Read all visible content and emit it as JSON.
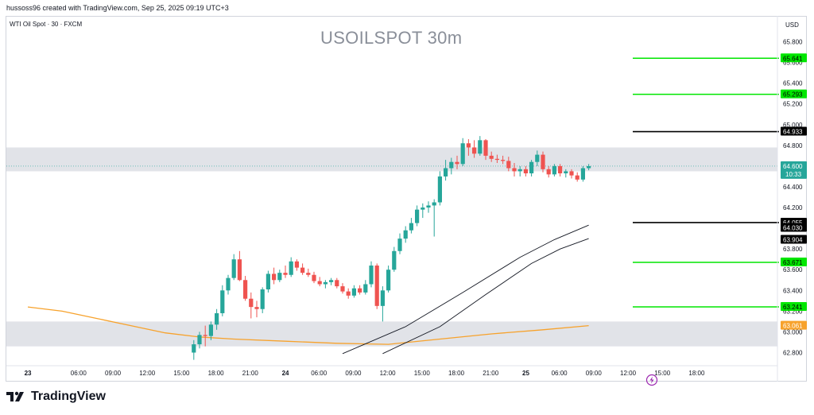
{
  "header": {
    "credit": "hussoss96 created with TradingView.com, Sep 25, 2025 09:19 UTC+3"
  },
  "symbol": "WTI Oil Spot · 30 · FXCM",
  "logo": {
    "text": "TradingView"
  },
  "colors": {
    "up": "#26a69a",
    "down": "#ef5350",
    "support_line": "#00e600",
    "resistance_line": "#000000",
    "ma_orange": "#f7a22c",
    "zone": "#e1e3e8",
    "current_price": "#26a69a"
  },
  "chart_data": {
    "type": "candlestick",
    "title": "USOILSPOT 30m",
    "currency": "USD",
    "ylim": [
      62.75,
      65.95
    ],
    "y_ticks": [
      "65.800",
      "65.600",
      "65.400",
      "65.200",
      "65.000",
      "64.800",
      "64.400",
      "64.200",
      "63.800",
      "63.600",
      "63.400",
      "63.200",
      "63.000",
      "62.800"
    ],
    "x_ticks": [
      {
        "i": 0,
        "label": "23"
      },
      {
        "i": 9,
        "label": "06:00"
      },
      {
        "i": 15,
        "label": "09:00"
      },
      {
        "i": 21,
        "label": "12:00"
      },
      {
        "i": 27,
        "label": "15:00"
      },
      {
        "i": 33,
        "label": "18:00"
      },
      {
        "i": 39,
        "label": "21:00"
      },
      {
        "i": 45,
        "label": "24"
      },
      {
        "i": 51,
        "label": "06:00"
      },
      {
        "i": 57,
        "label": "09:00"
      },
      {
        "i": 63,
        "label": "12:00"
      },
      {
        "i": 69,
        "label": "15:00"
      },
      {
        "i": 75,
        "label": "18:00"
      },
      {
        "i": 81,
        "label": "21:00"
      },
      {
        "i": 87,
        "label": "25"
      },
      {
        "i": 93,
        "label": "06:00"
      },
      {
        "i": 99,
        "label": "09:00"
      },
      {
        "i": 105,
        "label": "12:00"
      },
      {
        "i": 111,
        "label": "15:00"
      },
      {
        "i": 117,
        "label": "18:00"
      }
    ],
    "candles": [
      {
        "i": 29,
        "o": 62.8,
        "h": 62.92,
        "l": 62.73,
        "c": 62.88
      },
      {
        "i": 30,
        "o": 62.88,
        "h": 63.0,
        "l": 62.84,
        "c": 62.97
      },
      {
        "i": 31,
        "o": 62.97,
        "h": 63.06,
        "l": 62.86,
        "c": 62.96
      },
      {
        "i": 32,
        "o": 62.96,
        "h": 63.1,
        "l": 62.92,
        "c": 63.07
      },
      {
        "i": 33,
        "o": 63.07,
        "h": 63.22,
        "l": 63.02,
        "c": 63.18
      },
      {
        "i": 34,
        "o": 63.18,
        "h": 63.45,
        "l": 63.15,
        "c": 63.4
      },
      {
        "i": 35,
        "o": 63.4,
        "h": 63.55,
        "l": 63.36,
        "c": 63.52
      },
      {
        "i": 36,
        "o": 63.52,
        "h": 63.75,
        "l": 63.5,
        "c": 63.7
      },
      {
        "i": 37,
        "o": 63.7,
        "h": 63.78,
        "l": 63.49,
        "c": 63.5
      },
      {
        "i": 38,
        "o": 63.5,
        "h": 63.54,
        "l": 63.3,
        "c": 63.32
      },
      {
        "i": 39,
        "o": 63.32,
        "h": 63.38,
        "l": 63.13,
        "c": 63.24
      },
      {
        "i": 40,
        "o": 63.24,
        "h": 63.3,
        "l": 63.14,
        "c": 63.22
      },
      {
        "i": 41,
        "o": 63.22,
        "h": 63.43,
        "l": 63.18,
        "c": 63.41
      },
      {
        "i": 42,
        "o": 63.41,
        "h": 63.59,
        "l": 63.38,
        "c": 63.56
      },
      {
        "i": 43,
        "o": 63.56,
        "h": 63.62,
        "l": 63.46,
        "c": 63.5
      },
      {
        "i": 44,
        "o": 63.5,
        "h": 63.6,
        "l": 63.48,
        "c": 63.57
      },
      {
        "i": 45,
        "o": 63.57,
        "h": 63.64,
        "l": 63.52,
        "c": 63.55
      },
      {
        "i": 46,
        "o": 63.55,
        "h": 63.72,
        "l": 63.53,
        "c": 63.68
      },
      {
        "i": 47,
        "o": 63.68,
        "h": 63.7,
        "l": 63.59,
        "c": 63.62
      },
      {
        "i": 48,
        "o": 63.62,
        "h": 63.66,
        "l": 63.55,
        "c": 63.57
      },
      {
        "i": 49,
        "o": 63.57,
        "h": 63.61,
        "l": 63.53,
        "c": 63.55
      },
      {
        "i": 50,
        "o": 63.55,
        "h": 63.58,
        "l": 63.47,
        "c": 63.49
      },
      {
        "i": 51,
        "o": 63.49,
        "h": 63.53,
        "l": 63.44,
        "c": 63.46
      },
      {
        "i": 52,
        "o": 63.46,
        "h": 63.5,
        "l": 63.42,
        "c": 63.48
      },
      {
        "i": 53,
        "o": 63.48,
        "h": 63.52,
        "l": 63.45,
        "c": 63.5
      },
      {
        "i": 54,
        "o": 63.5,
        "h": 63.52,
        "l": 63.42,
        "c": 63.44
      },
      {
        "i": 55,
        "o": 63.44,
        "h": 63.47,
        "l": 63.37,
        "c": 63.39
      },
      {
        "i": 56,
        "o": 63.39,
        "h": 63.42,
        "l": 63.32,
        "c": 63.35
      },
      {
        "i": 57,
        "o": 63.35,
        "h": 63.45,
        "l": 63.33,
        "c": 63.42
      },
      {
        "i": 58,
        "o": 63.42,
        "h": 63.45,
        "l": 63.36,
        "c": 63.38
      },
      {
        "i": 59,
        "o": 63.38,
        "h": 63.5,
        "l": 63.36,
        "c": 63.46
      },
      {
        "i": 60,
        "o": 63.46,
        "h": 63.68,
        "l": 63.43,
        "c": 63.64
      },
      {
        "i": 61,
        "o": 63.64,
        "h": 63.66,
        "l": 63.22,
        "c": 63.25
      },
      {
        "i": 62,
        "o": 63.25,
        "h": 63.44,
        "l": 63.1,
        "c": 63.4
      },
      {
        "i": 63,
        "o": 63.4,
        "h": 63.64,
        "l": 63.38,
        "c": 63.6
      },
      {
        "i": 64,
        "o": 63.6,
        "h": 63.82,
        "l": 63.58,
        "c": 63.78
      },
      {
        "i": 65,
        "o": 63.78,
        "h": 63.95,
        "l": 63.75,
        "c": 63.9
      },
      {
        "i": 66,
        "o": 63.9,
        "h": 64.02,
        "l": 63.86,
        "c": 63.98
      },
      {
        "i": 67,
        "o": 63.98,
        "h": 64.1,
        "l": 63.95,
        "c": 64.05
      },
      {
        "i": 68,
        "o": 64.05,
        "h": 64.22,
        "l": 64.02,
        "c": 64.18
      },
      {
        "i": 69,
        "o": 64.18,
        "h": 64.24,
        "l": 64.1,
        "c": 64.2
      },
      {
        "i": 70,
        "o": 64.2,
        "h": 64.26,
        "l": 64.15,
        "c": 64.22
      },
      {
        "i": 71,
        "o": 64.22,
        "h": 64.28,
        "l": 63.92,
        "c": 64.25
      },
      {
        "i": 72,
        "o": 64.25,
        "h": 64.55,
        "l": 64.22,
        "c": 64.5
      },
      {
        "i": 73,
        "o": 64.5,
        "h": 64.66,
        "l": 64.46,
        "c": 64.58
      },
      {
        "i": 74,
        "o": 64.58,
        "h": 64.68,
        "l": 64.52,
        "c": 64.64
      },
      {
        "i": 75,
        "o": 64.64,
        "h": 64.7,
        "l": 64.57,
        "c": 64.62
      },
      {
        "i": 76,
        "o": 64.62,
        "h": 64.87,
        "l": 64.6,
        "c": 64.82
      },
      {
        "i": 77,
        "o": 64.82,
        "h": 64.86,
        "l": 64.7,
        "c": 64.78
      },
      {
        "i": 78,
        "o": 64.78,
        "h": 64.85,
        "l": 64.68,
        "c": 64.72
      },
      {
        "i": 79,
        "o": 64.72,
        "h": 64.89,
        "l": 64.7,
        "c": 64.85
      },
      {
        "i": 80,
        "o": 64.85,
        "h": 64.86,
        "l": 64.66,
        "c": 64.7
      },
      {
        "i": 81,
        "o": 64.7,
        "h": 64.74,
        "l": 64.64,
        "c": 64.67
      },
      {
        "i": 82,
        "o": 64.67,
        "h": 64.71,
        "l": 64.63,
        "c": 64.66
      },
      {
        "i": 83,
        "o": 64.66,
        "h": 64.7,
        "l": 64.62,
        "c": 64.65
      },
      {
        "i": 84,
        "o": 64.65,
        "h": 64.69,
        "l": 64.55,
        "c": 64.58
      },
      {
        "i": 85,
        "o": 64.58,
        "h": 64.63,
        "l": 64.5,
        "c": 64.55
      },
      {
        "i": 86,
        "o": 64.55,
        "h": 64.6,
        "l": 64.5,
        "c": 64.57
      },
      {
        "i": 87,
        "o": 64.57,
        "h": 64.6,
        "l": 64.5,
        "c": 64.53
      },
      {
        "i": 88,
        "o": 64.53,
        "h": 64.66,
        "l": 64.5,
        "c": 64.64
      },
      {
        "i": 89,
        "o": 64.64,
        "h": 64.75,
        "l": 64.6,
        "c": 64.71
      },
      {
        "i": 90,
        "o": 64.71,
        "h": 64.74,
        "l": 64.54,
        "c": 64.57
      },
      {
        "i": 91,
        "o": 64.57,
        "h": 64.6,
        "l": 64.49,
        "c": 64.52
      },
      {
        "i": 92,
        "o": 64.52,
        "h": 64.62,
        "l": 64.5,
        "c": 64.6
      },
      {
        "i": 93,
        "o": 64.6,
        "h": 64.62,
        "l": 64.5,
        "c": 64.53
      },
      {
        "i": 94,
        "o": 64.53,
        "h": 64.57,
        "l": 64.49,
        "c": 64.55
      },
      {
        "i": 95,
        "o": 64.55,
        "h": 64.57,
        "l": 64.48,
        "c": 64.51
      },
      {
        "i": 96,
        "o": 64.51,
        "h": 64.54,
        "l": 64.45,
        "c": 64.47
      },
      {
        "i": 97,
        "o": 64.47,
        "h": 64.6,
        "l": 64.45,
        "c": 64.58
      },
      {
        "i": 98,
        "o": 64.58,
        "h": 64.62,
        "l": 64.56,
        "c": 64.6
      }
    ],
    "horizontal_lines": [
      {
        "price": 65.641,
        "label": "65.641",
        "kind": "support"
      },
      {
        "price": 65.293,
        "label": "65.293",
        "kind": "support"
      },
      {
        "price": 64.933,
        "label": "64.933",
        "kind": "resistance"
      },
      {
        "price": 64.055,
        "label": "64.055",
        "kind": "resistance"
      },
      {
        "price": 63.671,
        "label": "63.671",
        "kind": "support"
      },
      {
        "price": 63.241,
        "label": "63.241",
        "kind": "support"
      }
    ],
    "zones": [
      {
        "from": 64.55,
        "to": 64.78
      },
      {
        "from": 62.86,
        "to": 63.1
      }
    ],
    "moving_average": {
      "color": "orange",
      "last_label": "63.061",
      "points": [
        {
          "i": 0,
          "v": 63.24
        },
        {
          "i": 6,
          "v": 63.2
        },
        {
          "i": 12,
          "v": 63.13
        },
        {
          "i": 18,
          "v": 63.06
        },
        {
          "i": 24,
          "v": 62.99
        },
        {
          "i": 30,
          "v": 62.95
        },
        {
          "i": 36,
          "v": 62.93
        },
        {
          "i": 45,
          "v": 62.91
        },
        {
          "i": 54,
          "v": 62.89
        },
        {
          "i": 63,
          "v": 62.88
        },
        {
          "i": 72,
          "v": 62.93
        },
        {
          "i": 81,
          "v": 62.98
        },
        {
          "i": 90,
          "v": 63.02
        },
        {
          "i": 98,
          "v": 63.06
        }
      ]
    },
    "curves": [
      {
        "points": [
          {
            "i": 55,
            "v": 62.79
          },
          {
            "i": 66,
            "v": 63.05
          },
          {
            "i": 76,
            "v": 63.38
          },
          {
            "i": 86,
            "v": 63.72
          },
          {
            "i": 92,
            "v": 63.89
          },
          {
            "i": 98,
            "v": 64.03
          }
        ],
        "label": "64.030"
      },
      {
        "points": [
          {
            "i": 62,
            "v": 62.79
          },
          {
            "i": 72,
            "v": 63.05
          },
          {
            "i": 80,
            "v": 63.36
          },
          {
            "i": 88,
            "v": 63.66
          },
          {
            "i": 93,
            "v": 63.8
          },
          {
            "i": 98,
            "v": 63.9
          }
        ],
        "label": "63.904"
      }
    ],
    "current_price": {
      "price": 64.6,
      "label": "64.600",
      "countdown": "10:33"
    }
  }
}
